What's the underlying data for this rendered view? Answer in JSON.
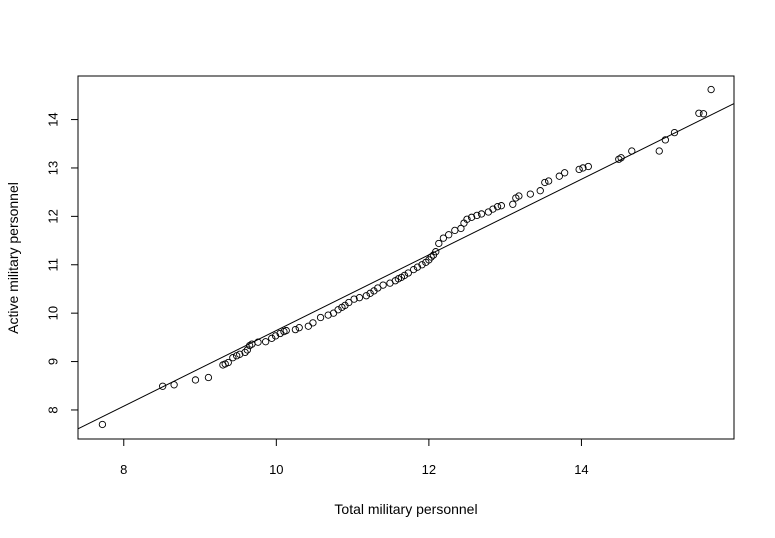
{
  "chart_data": {
    "type": "scatter",
    "title": "",
    "xlabel": "Total military personnel",
    "ylabel": "Active military personnel",
    "xlim": [
      7.4,
      16.0
    ],
    "ylim": [
      7.4,
      14.9
    ],
    "xticks": [
      8,
      10,
      12,
      14
    ],
    "yticks": [
      8,
      9,
      10,
      11,
      12,
      13,
      14
    ],
    "xtick_labels": [
      "8",
      "10",
      "12",
      "14"
    ],
    "ytick_labels": [
      "8",
      "9",
      "10",
      "11",
      "12",
      "13",
      "14"
    ],
    "grid": false,
    "fit_line": {
      "x": [
        7.4,
        16.0
      ],
      "y": [
        7.61,
        14.33
      ]
    },
    "series": [
      {
        "points": [
          [
            7.72,
            7.7
          ],
          [
            8.51,
            8.49
          ],
          [
            8.66,
            8.52
          ],
          [
            8.94,
            8.62
          ],
          [
            9.11,
            8.67
          ],
          [
            9.3,
            8.93
          ],
          [
            9.33,
            8.95
          ],
          [
            9.37,
            8.98
          ],
          [
            9.43,
            9.08
          ],
          [
            9.48,
            9.12
          ],
          [
            9.52,
            9.15
          ],
          [
            9.59,
            9.19
          ],
          [
            9.62,
            9.24
          ],
          [
            9.65,
            9.33
          ],
          [
            9.68,
            9.36
          ],
          [
            9.76,
            9.4
          ],
          [
            9.86,
            9.41
          ],
          [
            9.94,
            9.48
          ],
          [
            9.99,
            9.53
          ],
          [
            10.05,
            9.58
          ],
          [
            10.1,
            9.62
          ],
          [
            10.13,
            9.64
          ],
          [
            10.25,
            9.66
          ],
          [
            10.3,
            9.7
          ],
          [
            10.42,
            9.73
          ],
          [
            10.48,
            9.8
          ],
          [
            10.58,
            9.91
          ],
          [
            10.68,
            9.96
          ],
          [
            10.75,
            10.0
          ],
          [
            10.81,
            10.07
          ],
          [
            10.86,
            10.12
          ],
          [
            10.9,
            10.16
          ],
          [
            10.95,
            10.22
          ],
          [
            11.02,
            10.29
          ],
          [
            11.09,
            10.32
          ],
          [
            11.18,
            10.36
          ],
          [
            11.23,
            10.41
          ],
          [
            11.28,
            10.46
          ],
          [
            11.33,
            10.52
          ],
          [
            11.4,
            10.58
          ],
          [
            11.49,
            10.62
          ],
          [
            11.56,
            10.67
          ],
          [
            11.6,
            10.71
          ],
          [
            11.64,
            10.74
          ],
          [
            11.68,
            10.78
          ],
          [
            11.73,
            10.83
          ],
          [
            11.8,
            10.9
          ],
          [
            11.85,
            10.95
          ],
          [
            11.91,
            11.0
          ],
          [
            11.96,
            11.05
          ],
          [
            12.0,
            11.1
          ],
          [
            12.03,
            11.16
          ],
          [
            12.06,
            11.2
          ],
          [
            12.09,
            11.27
          ],
          [
            12.13,
            11.44
          ],
          [
            12.19,
            11.55
          ],
          [
            12.26,
            11.62
          ],
          [
            12.34,
            11.71
          ],
          [
            12.42,
            11.75
          ],
          [
            12.46,
            11.86
          ],
          [
            12.5,
            11.94
          ],
          [
            12.56,
            11.98
          ],
          [
            12.63,
            12.02
          ],
          [
            12.69,
            12.05
          ],
          [
            12.78,
            12.09
          ],
          [
            12.84,
            12.15
          ],
          [
            12.9,
            12.2
          ],
          [
            12.95,
            12.22
          ],
          [
            13.1,
            12.25
          ],
          [
            13.14,
            12.38
          ],
          [
            13.18,
            12.42
          ],
          [
            13.33,
            12.46
          ],
          [
            13.46,
            12.53
          ],
          [
            13.52,
            12.7
          ],
          [
            13.57,
            12.73
          ],
          [
            13.71,
            12.83
          ],
          [
            13.78,
            12.9
          ],
          [
            13.97,
            12.97
          ],
          [
            14.02,
            13.0
          ],
          [
            14.09,
            13.03
          ],
          [
            14.49,
            13.18
          ],
          [
            14.52,
            13.21
          ],
          [
            14.66,
            13.35
          ],
          [
            15.02,
            13.35
          ],
          [
            15.1,
            13.58
          ],
          [
            15.22,
            13.73
          ],
          [
            15.54,
            14.13
          ],
          [
            15.6,
            14.12
          ],
          [
            15.7,
            14.62
          ]
        ]
      }
    ]
  }
}
